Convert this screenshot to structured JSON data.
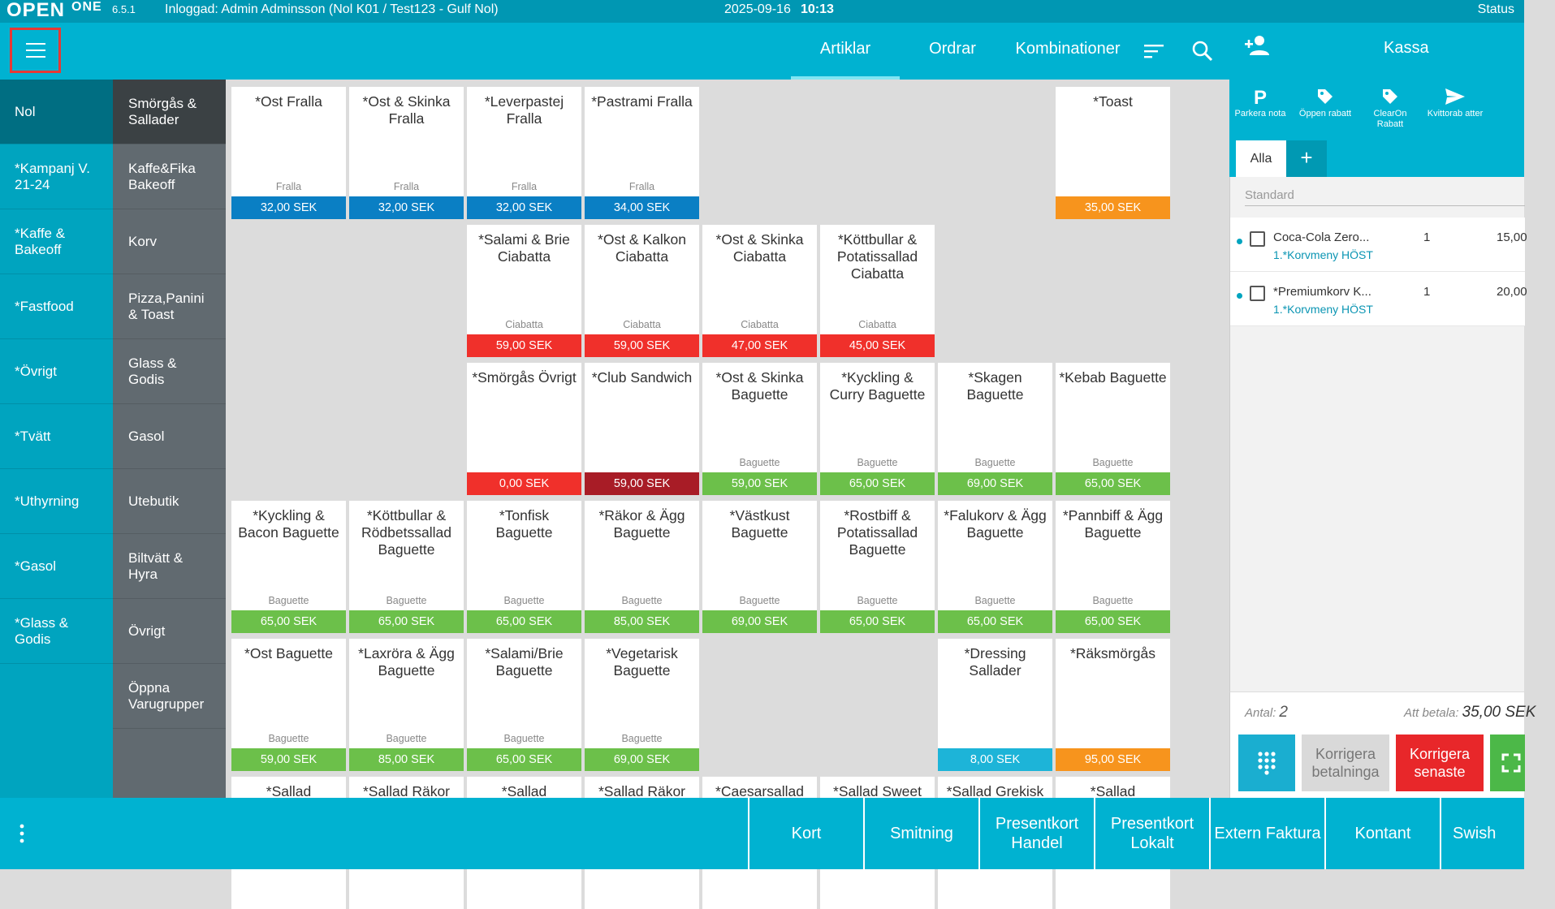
{
  "status_bar": {
    "logo": "OPEN",
    "logo_suffix": "ONE",
    "version": "6.5.1",
    "user": "Inloggad: Admin Adminsson (Nol K01 / Test123 - Gulf Nol)",
    "date": "2025-09-16",
    "time": "10:13",
    "status": "Status"
  },
  "header": {
    "tabs": [
      {
        "label": "Artiklar",
        "active": true
      },
      {
        "label": "Ordrar",
        "active": false
      },
      {
        "label": "Kombinationer",
        "active": false
      }
    ],
    "icons": [
      "menu-icon",
      "sort-icon",
      "search-icon"
    ]
  },
  "categories_main": [
    {
      "label": "Nol",
      "active": true
    },
    {
      "label": "*Kampanj V. 21-24"
    },
    {
      "label": "*Kaffe & Bakeoff"
    },
    {
      "label": "*Fastfood"
    },
    {
      "label": "*Övrigt"
    },
    {
      "label": "*Tvätt"
    },
    {
      "label": "*Uthyrning"
    },
    {
      "label": "*Gasol"
    },
    {
      "label": "*Glass & Godis"
    }
  ],
  "categories_sub": [
    {
      "label": "Smörgås & Sallader",
      "active": true
    },
    {
      "label": "Kaffe&Fika Bakeoff"
    },
    {
      "label": "Korv"
    },
    {
      "label": "Pizza,Panini & Toast"
    },
    {
      "label": "Glass & Godis"
    },
    {
      "label": "Gasol"
    },
    {
      "label": "Utebutik"
    },
    {
      "label": "Biltvätt & Hyra"
    },
    {
      "label": "Övrigt"
    },
    {
      "label": "Öppna Varugrupper"
    }
  ],
  "colors": {
    "blue": "#0a7fc4",
    "orange": "#f7941d",
    "red": "#f0302b",
    "darkred": "#a81c26",
    "green": "#6cc04a",
    "cyan": "#1db4d8"
  },
  "products": [
    {
      "row": 0,
      "col": 0,
      "name": "*Ost Fralla",
      "sub": "Fralla",
      "price": "32,00 SEK",
      "color": "blue"
    },
    {
      "row": 0,
      "col": 1,
      "name": "*Ost & Skinka Fralla",
      "sub": "Fralla",
      "price": "32,00 SEK",
      "color": "blue"
    },
    {
      "row": 0,
      "col": 2,
      "name": "*Leverpastej Fralla",
      "sub": "Fralla",
      "price": "32,00 SEK",
      "color": "blue"
    },
    {
      "row": 0,
      "col": 3,
      "name": "*Pastrami Fralla",
      "sub": "Fralla",
      "price": "34,00 SEK",
      "color": "blue"
    },
    {
      "row": 0,
      "col": 7,
      "name": "*Toast",
      "sub": "",
      "price": "35,00 SEK",
      "color": "orange"
    },
    {
      "row": 1,
      "col": 2,
      "name": "*Salami & Brie Ciabatta",
      "sub": "Ciabatta",
      "price": "59,00 SEK",
      "color": "red"
    },
    {
      "row": 1,
      "col": 3,
      "name": "*Ost & Kalkon Ciabatta",
      "sub": "Ciabatta",
      "price": "59,00 SEK",
      "color": "red"
    },
    {
      "row": 1,
      "col": 4,
      "name": "*Ost & Skinka Ciabatta",
      "sub": "Ciabatta",
      "price": "47,00 SEK",
      "color": "red"
    },
    {
      "row": 1,
      "col": 5,
      "name": "*Köttbullar & Potatissallad Ciabatta",
      "sub": "Ciabatta",
      "price": "45,00 SEK",
      "color": "red"
    },
    {
      "row": 2,
      "col": 2,
      "name": "*Smörgås Övrigt",
      "sub": "",
      "price": "0,00 SEK",
      "color": "red"
    },
    {
      "row": 2,
      "col": 3,
      "name": "*Club Sandwich",
      "sub": "",
      "price": "59,00 SEK",
      "color": "darkred"
    },
    {
      "row": 2,
      "col": 4,
      "name": "*Ost & Skinka Baguette",
      "sub": "Baguette",
      "price": "59,00 SEK",
      "color": "green"
    },
    {
      "row": 2,
      "col": 5,
      "name": "*Kyckling & Curry Baguette",
      "sub": "Baguette",
      "price": "65,00 SEK",
      "color": "green"
    },
    {
      "row": 2,
      "col": 6,
      "name": "*Skagen Baguette",
      "sub": "Baguette",
      "price": "69,00 SEK",
      "color": "green"
    },
    {
      "row": 2,
      "col": 7,
      "name": "*Kebab Baguette",
      "sub": "Baguette",
      "price": "65,00 SEK",
      "color": "green"
    },
    {
      "row": 3,
      "col": 0,
      "name": "*Kyckling & Bacon Baguette",
      "sub": "Baguette",
      "price": "65,00 SEK",
      "color": "green"
    },
    {
      "row": 3,
      "col": 1,
      "name": "*Köttbullar & Rödbetssallad Baguette",
      "sub": "Baguette",
      "price": "65,00 SEK",
      "color": "green"
    },
    {
      "row": 3,
      "col": 2,
      "name": "*Tonfisk Baguette",
      "sub": "Baguette",
      "price": "65,00 SEK",
      "color": "green"
    },
    {
      "row": 3,
      "col": 3,
      "name": "*Räkor & Ägg Baguette",
      "sub": "Baguette",
      "price": "85,00 SEK",
      "color": "green"
    },
    {
      "row": 3,
      "col": 4,
      "name": "*Västkust Baguette",
      "sub": "Baguette",
      "price": "69,00 SEK",
      "color": "green"
    },
    {
      "row": 3,
      "col": 5,
      "name": "*Rostbiff & Potatissallad Baguette",
      "sub": "Baguette",
      "price": "65,00 SEK",
      "color": "green"
    },
    {
      "row": 3,
      "col": 6,
      "name": "*Falukorv & Ägg Baguette",
      "sub": "Baguette",
      "price": "65,00 SEK",
      "color": "green"
    },
    {
      "row": 3,
      "col": 7,
      "name": "*Pannbiff & Ägg Baguette",
      "sub": "Baguette",
      "price": "65,00 SEK",
      "color": "green"
    },
    {
      "row": 4,
      "col": 0,
      "name": "*Ost Baguette",
      "sub": "Baguette",
      "price": "59,00 SEK",
      "color": "green"
    },
    {
      "row": 4,
      "col": 1,
      "name": "*Laxröra & Ägg Baguette",
      "sub": "Baguette",
      "price": "85,00 SEK",
      "color": "green"
    },
    {
      "row": 4,
      "col": 2,
      "name": "*Salami/Brie Baguette",
      "sub": "Baguette",
      "price": "65,00 SEK",
      "color": "green"
    },
    {
      "row": 4,
      "col": 3,
      "name": "*Vegetarisk Baguette",
      "sub": "Baguette",
      "price": "69,00 SEK",
      "color": "green"
    },
    {
      "row": 4,
      "col": 6,
      "name": "*Dressing Sallader",
      "sub": "",
      "price": "8,00 SEK",
      "color": "cyan"
    },
    {
      "row": 4,
      "col": 7,
      "name": "*Räksmörgås",
      "sub": "",
      "price": "95,00 SEK",
      "color": "orange"
    },
    {
      "row": 5,
      "col": 0,
      "name": "*Sallad",
      "sub": "",
      "price": "",
      "color": "green"
    },
    {
      "row": 5,
      "col": 1,
      "name": "*Sallad Räkor",
      "sub": "",
      "price": "",
      "color": "green"
    },
    {
      "row": 5,
      "col": 2,
      "name": "*Sallad",
      "sub": "",
      "price": "",
      "color": "green"
    },
    {
      "row": 5,
      "col": 3,
      "name": "*Sallad Räkor",
      "sub": "",
      "price": "",
      "color": "green"
    },
    {
      "row": 5,
      "col": 4,
      "name": "*Caesarsallad",
      "sub": "",
      "price": "",
      "color": "green"
    },
    {
      "row": 5,
      "col": 5,
      "name": "*Sallad Sweet",
      "sub": "",
      "price": "",
      "color": "green"
    },
    {
      "row": 5,
      "col": 6,
      "name": "*Sallad Grekisk",
      "sub": "",
      "price": "",
      "color": "green"
    },
    {
      "row": 5,
      "col": 7,
      "name": "*Sallad",
      "sub": "",
      "price": "",
      "color": "green"
    }
  ],
  "cart": {
    "title": "Kassa",
    "actions": [
      {
        "icon": "P",
        "label": "Parkera nota"
      },
      {
        "icon": "tag",
        "label": "Öppen rabatt"
      },
      {
        "icon": "tag",
        "label": "ClearOn Rabatt"
      },
      {
        "icon": "send",
        "label": "Kvittorab atter"
      }
    ],
    "tab_all": "Alla",
    "tab_add": "+",
    "pricelist": "Standard",
    "lines": [
      {
        "name": "Coca-Cola Zero...",
        "qty": "1",
        "price": "15,00",
        "modifier": "1.*Korvmeny HÖST"
      },
      {
        "name": "*Premiumkorv K...",
        "qty": "1",
        "price": "20,00",
        "modifier": "1.*Korvmeny HÖST"
      }
    ],
    "antal_label": "Antal:",
    "antal_value": "2",
    "betala_label": "Att betala:",
    "betala_value": "35,00 SEK",
    "buttons": {
      "keypad": "keypad",
      "korrigera_betalninga": "Korrigera betalninga",
      "korrigera_senaste": "Korrigera senaste"
    }
  },
  "payments": [
    "Kort",
    "Smitning",
    "Presentkort Handel",
    "Presentkort Lokalt",
    "Extern Faktura",
    "Kontant",
    "Swish"
  ]
}
